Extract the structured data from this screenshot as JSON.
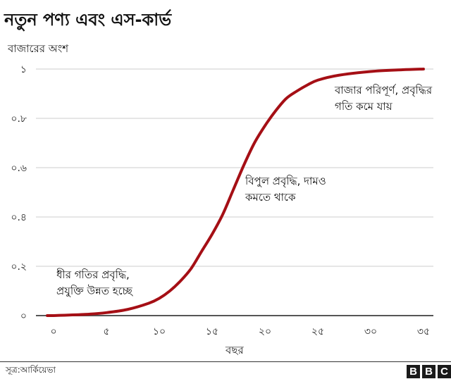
{
  "header": {
    "title": "নতুন পণ্য এবং এস-কার্ভ",
    "y_axis_label": "বাজারের অংশ"
  },
  "x_axis_label": "বছর",
  "footer": {
    "source": "সূত্র:আর্কিয়েভা",
    "logo_letters": [
      "B",
      "B",
      "C"
    ]
  },
  "colors": {
    "curve": "#a50f15",
    "grid": "#dddddd",
    "axis": "#555555"
  },
  "annotations": [
    {
      "lines": [
        "ধীর গতির প্রবৃদ্ধি,",
        "প্রযুক্তি উন্নত হচ্ছে"
      ]
    },
    {
      "lines": [
        "বিপুল প্রবৃদ্ধি, দামও",
        "কমতে থাকে"
      ]
    },
    {
      "lines": [
        "বাজার পরিপূর্ণ, প্রবৃদ্ধির",
        "গতি কমে যায়"
      ]
    }
  ],
  "chart_data": {
    "type": "line",
    "title": "নতুন পণ্য এবং এস-কার্ভ",
    "xlabel": "বছর",
    "ylabel": "বাজারের অংশ",
    "x_tick_labels": [
      "০",
      "৫",
      "১০",
      "১৫",
      "২০",
      "২৫",
      "৩০",
      "৩৫"
    ],
    "y_tick_labels": [
      "০",
      "০.২",
      "০.৪",
      "০.৬",
      "০.৮",
      "১"
    ],
    "x_ticks": [
      0,
      5,
      10,
      15,
      20,
      25,
      30,
      35
    ],
    "y_ticks": [
      0,
      0.2,
      0.4,
      0.6,
      0.8,
      1
    ],
    "xlim": [
      0,
      35
    ],
    "ylim": [
      0,
      1
    ],
    "grid": true,
    "legend": null,
    "series": [
      {
        "name": "S-curve",
        "x": [
          0,
          3,
          5,
          7,
          9,
          10,
          11,
          12,
          13,
          14,
          15,
          16,
          17,
          18,
          19,
          20,
          21,
          22,
          23,
          24,
          25,
          27,
          30,
          33,
          35
        ],
        "values": [
          0,
          0.005,
          0.012,
          0.025,
          0.05,
          0.07,
          0.1,
          0.14,
          0.19,
          0.26,
          0.33,
          0.41,
          0.51,
          0.61,
          0.7,
          0.77,
          0.83,
          0.88,
          0.91,
          0.935,
          0.955,
          0.975,
          0.99,
          0.997,
          1.0
        ]
      }
    ],
    "annotations": [
      {
        "x": 0,
        "y": 0.2,
        "text": "ধীর গতির প্রবৃদ্ধি, প্রযুক্তি উন্নত হচ্ছে"
      },
      {
        "x": 18,
        "y": 0.58,
        "text": "বিপুল প্রবৃদ্ধি, দামও কমতে থাকে"
      },
      {
        "x": 27,
        "y": 0.95,
        "text": "বাজার পরিপূর্ণ, প্রবৃদ্ধির গতি কমে যায়"
      }
    ]
  }
}
